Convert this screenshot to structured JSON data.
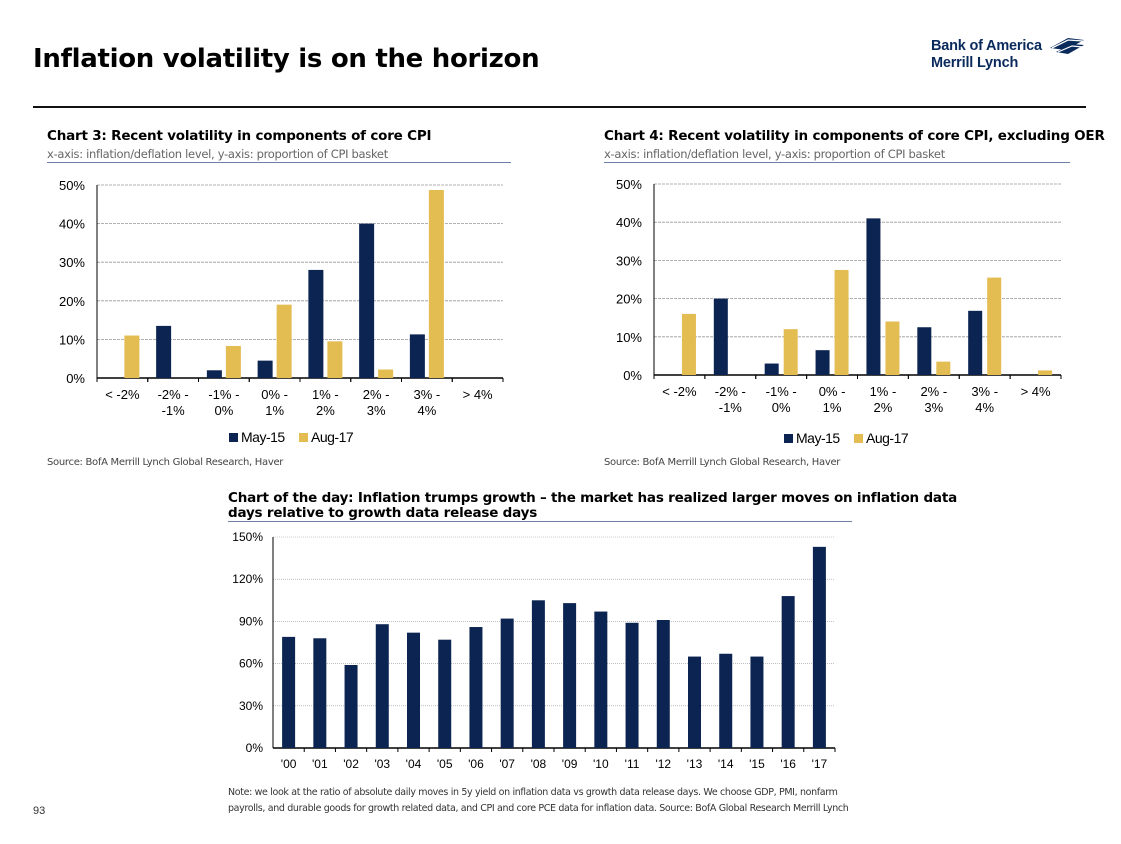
{
  "page": {
    "title": "Inflation volatility is on the horizon",
    "page_number": "93",
    "logo_line1": "Bank of America",
    "logo_line2": "Merrill Lynch"
  },
  "colors": {
    "navy": "#0c2451",
    "gold": "#e3bc52",
    "grid": "#999999"
  },
  "charts": {
    "chart3": {
      "title": "Chart 3: Recent volatility in components of core CPI",
      "subtitle": "x-axis: inflation/deflation level, y-axis: proportion of CPI basket",
      "source": "Source: BofA Merrill Lynch Global Research, Haver"
    },
    "chart4": {
      "title": "Chart 4: Recent volatility in components of core CPI, excluding OER",
      "subtitle": "x-axis: inflation/deflation level, y-axis: proportion of CPI basket",
      "source": "Source: BofA Merrill Lynch Global Research, Haver"
    },
    "chart_day": {
      "title_line1": "Chart of the day: Inflation trumps growth – the market has realized larger moves on inflation data",
      "title_line2": "days relative to growth data release days",
      "note_line1": "Note: we look at the ratio of absolute daily moves in 5y yield on inflation data vs growth data release days. We choose GDP, PMI, nonfarm",
      "note_line2": "payrolls, and durable goods for growth related data, and CPI and core PCE data for inflation data. Source: BofA Global Research Merrill Lynch"
    }
  },
  "chart_data": [
    {
      "type": "bar",
      "categories": [
        [
          "< -2%"
        ],
        [
          "-2% -",
          "-1%"
        ],
        [
          "-1% -",
          "0%"
        ],
        [
          "0% -",
          "1%"
        ],
        [
          "1% -",
          "2%"
        ],
        [
          "2% -",
          "3%"
        ],
        [
          "3% -",
          "4%"
        ],
        [
          "> 4%"
        ]
      ],
      "series": [
        {
          "name": "May-15",
          "values": [
            0,
            13.5,
            2,
            4.5,
            28,
            40,
            11.3,
            0
          ]
        },
        {
          "name": "Aug-17",
          "values": [
            11,
            0,
            8.3,
            19,
            9.5,
            2.2,
            48.7,
            0
          ]
        }
      ],
      "ylim": [
        0,
        50
      ],
      "yticks": [
        "0%",
        "10%",
        "20%",
        "30%",
        "40%",
        "50%"
      ],
      "legend_position": "bottom"
    },
    {
      "type": "bar",
      "categories": [
        [
          "< -2%"
        ],
        [
          "-2% -",
          "-1%"
        ],
        [
          "-1% -",
          "0%"
        ],
        [
          "0% -",
          "1%"
        ],
        [
          "1% -",
          "2%"
        ],
        [
          "2% -",
          "3%"
        ],
        [
          "3% -",
          "4%"
        ],
        [
          "> 4%"
        ]
      ],
      "series": [
        {
          "name": "May-15",
          "values": [
            0,
            20,
            3,
            6.5,
            41,
            12.5,
            16.8,
            0
          ]
        },
        {
          "name": "Aug-17",
          "values": [
            16,
            0,
            12,
            27.5,
            14,
            3.5,
            25.5,
            1.2
          ]
        }
      ],
      "ylim": [
        0,
        50
      ],
      "yticks": [
        "0%",
        "10%",
        "20%",
        "30%",
        "40%",
        "50%"
      ],
      "legend_position": "bottom"
    },
    {
      "type": "bar",
      "categories": [
        "'00",
        "'01",
        "'02",
        "'03",
        "'04",
        "'05",
        "'06",
        "'07",
        "'08",
        "'09",
        "'10",
        "'11",
        "'12",
        "'13",
        "'14",
        "'15",
        "'16",
        "'17"
      ],
      "values": [
        79,
        78,
        59,
        88,
        82,
        77,
        86,
        92,
        105,
        103,
        97,
        89,
        91,
        65,
        67,
        65,
        108,
        143
      ],
      "ylim": [
        0,
        150
      ],
      "yticks": [
        "0%",
        "30%",
        "60%",
        "90%",
        "120%",
        "150%"
      ]
    }
  ]
}
